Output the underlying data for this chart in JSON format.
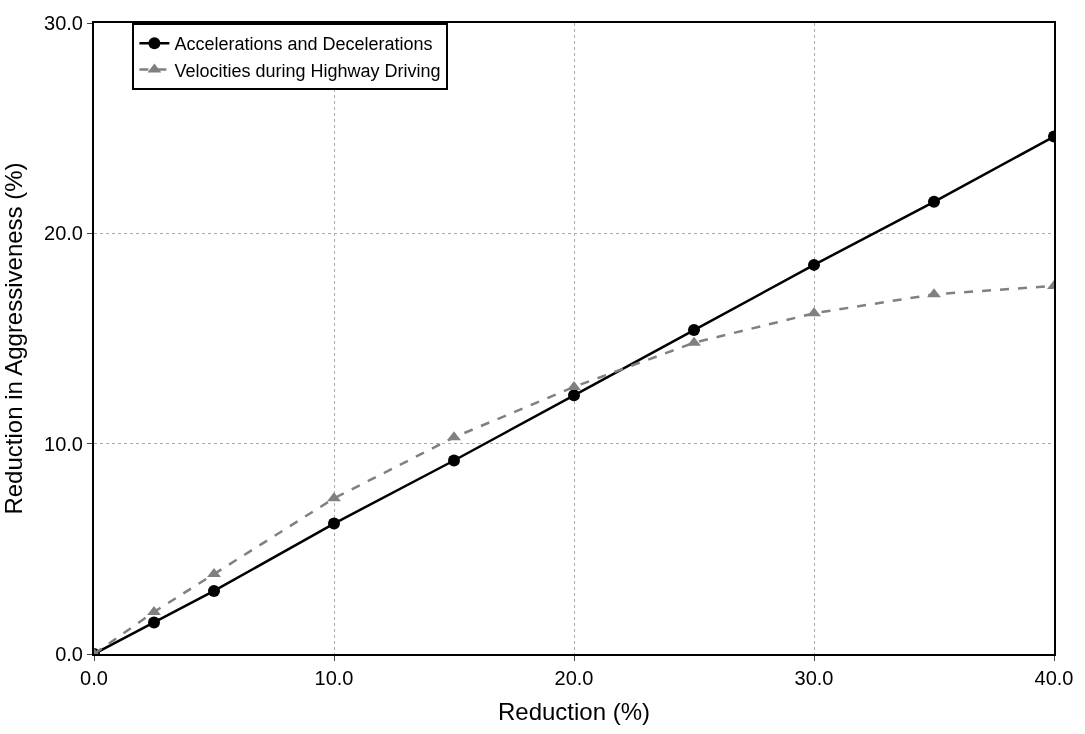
{
  "chart_data": {
    "type": "line",
    "xlabel": "Reduction (%)",
    "ylabel": "Reduction in Aggressiveness (%)",
    "x": [
      0,
      2.5,
      5,
      10,
      15,
      20,
      25,
      30,
      35,
      40
    ],
    "series": [
      {
        "name": "Accelerations and Decelerations",
        "color": "#000000",
        "marker": "circle",
        "line_style": "solid",
        "values": [
          0,
          1.5,
          3.0,
          6.2,
          9.2,
          12.3,
          15.4,
          18.5,
          21.5,
          24.6
        ]
      },
      {
        "name": "Velocities during Highway Driving",
        "color": "#808080",
        "marker": "triangle",
        "line_style": "dashed",
        "values": [
          0,
          2.0,
          3.8,
          7.4,
          10.3,
          12.7,
          14.8,
          16.2,
          17.1,
          17.5
        ]
      }
    ],
    "xlim": [
      0,
      40
    ],
    "xticks": [
      {
        "value": 0,
        "label": "0.0"
      },
      {
        "value": 10,
        "label": "10.0"
      },
      {
        "value": 20,
        "label": "20.0"
      },
      {
        "value": 30,
        "label": "30.0"
      },
      {
        "value": 40,
        "label": "40.0"
      }
    ],
    "ylim": [
      0,
      30
    ],
    "yticks": [
      {
        "value": 0,
        "label": "0.0"
      },
      {
        "value": 10,
        "label": "10.0"
      },
      {
        "value": 20,
        "label": "20.0"
      },
      {
        "value": 30,
        "label": "30.0"
      }
    ],
    "grid": true,
    "legend": "top left"
  }
}
